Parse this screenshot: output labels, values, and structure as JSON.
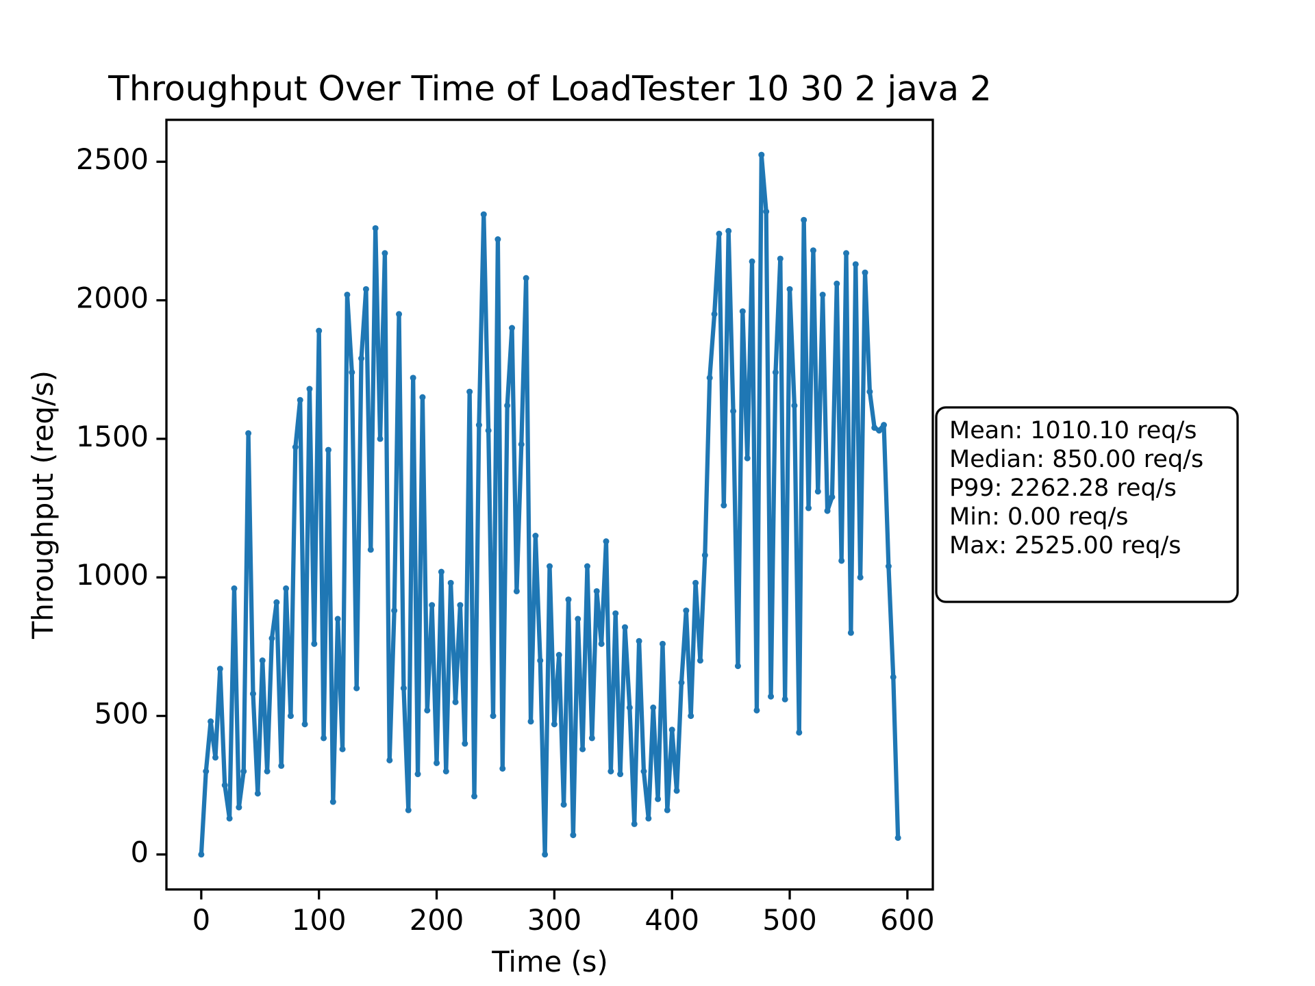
{
  "chart_data": {
    "type": "line",
    "title": "Throughput Over Time of LoadTester 10 30 2 java 2",
    "x_label": "Time (s)",
    "y_label": "Throughput (req/s)",
    "x": [
      0,
      4,
      8,
      12,
      16,
      20,
      24,
      28,
      32,
      36,
      40,
      44,
      48,
      52,
      56,
      60,
      64,
      68,
      72,
      76,
      80,
      84,
      88,
      92,
      96,
      100,
      104,
      108,
      112,
      116,
      120,
      124,
      128,
      132,
      136,
      140,
      144,
      148,
      152,
      156,
      160,
      164,
      168,
      172,
      176,
      180,
      184,
      188,
      192,
      196,
      200,
      204,
      208,
      212,
      216,
      220,
      224,
      228,
      232,
      236,
      240,
      244,
      248,
      252,
      256,
      260,
      264,
      268,
      272,
      276,
      280,
      284,
      288,
      292,
      296,
      300,
      304,
      308,
      312,
      316,
      320,
      324,
      328,
      332,
      336,
      340,
      344,
      348,
      352,
      356,
      360,
      364,
      368,
      372,
      376,
      380,
      384,
      388,
      392,
      396,
      400,
      404,
      408,
      412,
      416,
      420,
      424,
      428,
      432,
      436,
      440,
      444,
      448,
      452,
      456,
      460,
      464,
      468,
      472,
      476,
      480,
      484,
      488,
      492,
      496,
      500,
      504,
      508,
      512,
      516,
      520,
      524,
      528,
      532,
      536,
      540,
      544,
      548,
      552,
      556,
      560,
      564,
      568,
      572,
      576,
      580,
      584,
      588,
      592
    ],
    "series": [
      {
        "name": "Throughput",
        "color": "#1f77b4",
        "values": [
          0,
          300,
          480,
          350,
          670,
          250,
          130,
          960,
          170,
          300,
          1520,
          580,
          220,
          700,
          300,
          780,
          910,
          320,
          960,
          500,
          1470,
          1640,
          470,
          1680,
          760,
          1890,
          420,
          1460,
          190,
          850,
          380,
          2020,
          1740,
          600,
          1790,
          2040,
          1100,
          2260,
          1500,
          2170,
          340,
          880,
          1950,
          600,
          160,
          1720,
          290,
          1650,
          520,
          900,
          330,
          1020,
          300,
          980,
          550,
          900,
          400,
          1670,
          210,
          1550,
          2310,
          1530,
          500,
          2220,
          310,
          1620,
          1900,
          950,
          1480,
          2080,
          480,
          1150,
          700,
          0,
          1040,
          470,
          720,
          180,
          920,
          70,
          850,
          380,
          1040,
          420,
          950,
          760,
          1130,
          300,
          870,
          290,
          820,
          530,
          110,
          770,
          300,
          130,
          530,
          200,
          760,
          160,
          450,
          230,
          620,
          880,
          500,
          980,
          700,
          1080,
          1720,
          1950,
          2240,
          1260,
          2250,
          1600,
          680,
          1960,
          1430,
          2140,
          520,
          2525,
          2320,
          570,
          1740,
          2150,
          560,
          2040,
          1620,
          440,
          2290,
          1250,
          2180,
          1310,
          2020,
          1240,
          1290,
          2060,
          1060,
          2170,
          800,
          2130,
          1000,
          2100,
          1670,
          1540,
          1530,
          1550,
          1040,
          640,
          60
        ]
      }
    ],
    "xlim": [
      -29.6,
      621.6
    ],
    "ylim": [
      -126.25,
      2651.25
    ],
    "xticks": [
      0,
      100,
      200,
      300,
      400,
      500,
      600
    ],
    "yticks": [
      0,
      500,
      1000,
      1500,
      2000,
      2500
    ],
    "grid": false,
    "stats_box": [
      "Mean: 1010.10 req/s",
      "Median: 850.00 req/s",
      "P99: 2262.28 req/s",
      "Min: 0.00 req/s",
      "Max: 2525.00 req/s"
    ]
  }
}
